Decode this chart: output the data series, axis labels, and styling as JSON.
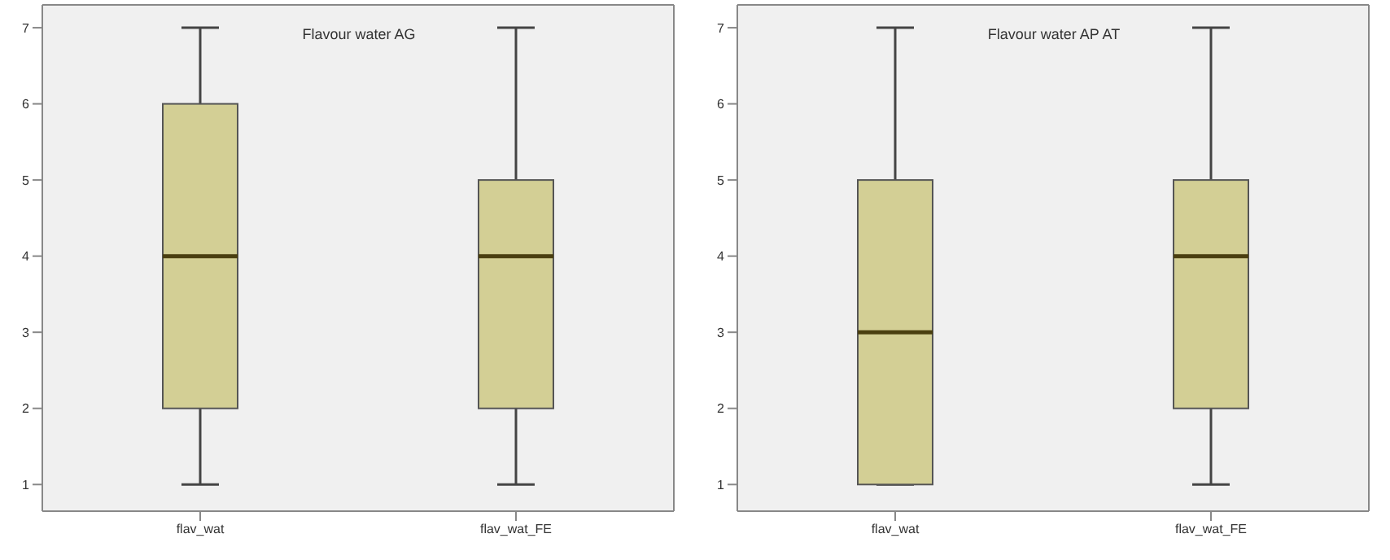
{
  "chart_data": [
    {
      "type": "box",
      "title": "Flavour water AG",
      "categories": [
        "flav_wat",
        "flav_wat_FE"
      ],
      "color": "#d3cf95",
      "ylim": [
        0.65,
        7.3
      ],
      "yticks": [
        1,
        2,
        3,
        4,
        5,
        6,
        7
      ],
      "grid": false,
      "boxes": [
        {
          "low": 1,
          "q1": 2,
          "median": 4,
          "q3": 6,
          "high": 7
        },
        {
          "low": 1,
          "q1": 2,
          "median": 4,
          "q3": 5,
          "high": 7
        }
      ]
    },
    {
      "type": "box",
      "title": "Flavour water AP AT",
      "categories": [
        "flav_wat",
        "flav_wat_FE"
      ],
      "color": "#d3cf95",
      "ylim": [
        0.65,
        7.3
      ],
      "yticks": [
        1,
        2,
        3,
        4,
        5,
        6,
        7
      ],
      "grid": false,
      "boxes": [
        {
          "low": 1,
          "q1": 1,
          "median": 3,
          "q3": 5,
          "high": 7
        },
        {
          "low": 1,
          "q1": 2,
          "median": 4,
          "q3": 5,
          "high": 7
        }
      ]
    }
  ]
}
